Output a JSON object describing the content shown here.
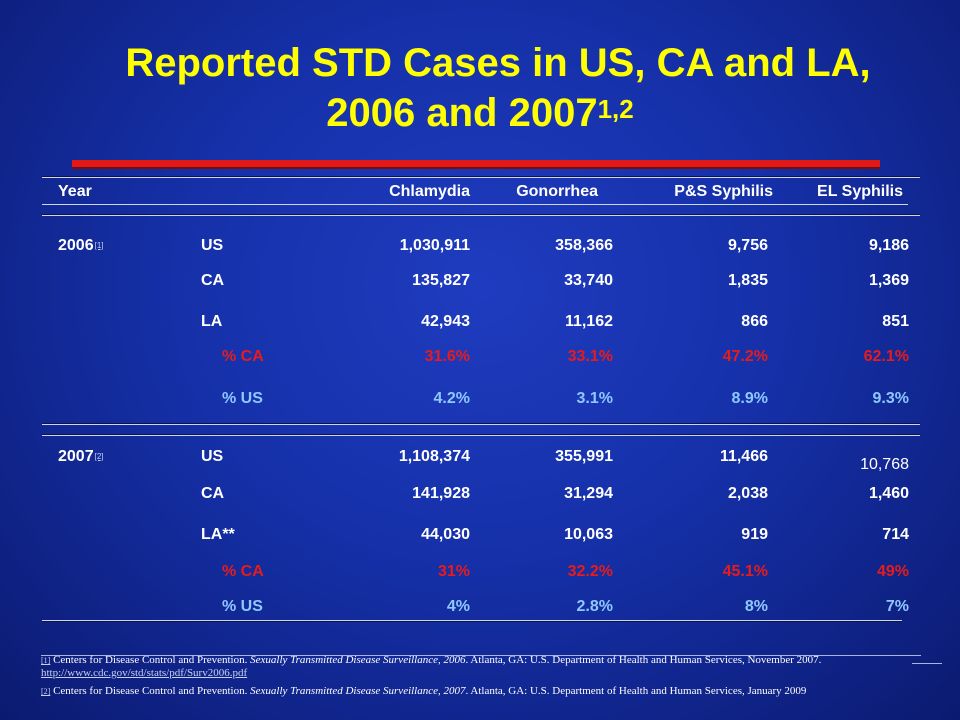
{
  "title": {
    "line1": "Reported STD Cases in US, CA and LA,",
    "line2": "2006 and 2007",
    "superscript": "1,2"
  },
  "chart_data": {
    "type": "table",
    "columns": [
      "Year",
      "",
      "Chlamydia",
      "Gonorrhea",
      "P&S Syphilis",
      "EL Syphilis"
    ],
    "groups": [
      {
        "year": "2006",
        "ref": "[1]",
        "rows": [
          {
            "label": "US",
            "values": [
              "1,030,911",
              "358,366",
              "9,756",
              "9,186"
            ]
          },
          {
            "label": "CA",
            "values": [
              "135,827",
              "33,740",
              "1,835",
              "1,369"
            ]
          },
          {
            "label": "LA",
            "values": [
              "42,943",
              "11,162",
              "866",
              "851"
            ]
          },
          {
            "label": "% CA",
            "values": [
              "31.6%",
              "33.1%",
              "47.2%",
              "62.1%"
            ]
          },
          {
            "label": "% US",
            "values": [
              "4.2%",
              "3.1%",
              "8.9%",
              "9.3%"
            ]
          }
        ]
      },
      {
        "year": "2007",
        "ref": "[2]",
        "rows": [
          {
            "label": "US",
            "values": [
              "1,108,374",
              "355,991",
              "11,466",
              "10,768"
            ]
          },
          {
            "label": "CA",
            "values": [
              "141,928",
              "31,294",
              "2,038",
              "1,460"
            ]
          },
          {
            "label": "LA**",
            "values": [
              "44,030",
              "10,063",
              "919",
              "714"
            ]
          },
          {
            "label": "% CA",
            "values": [
              "31%",
              "32.2%",
              "45.1%",
              "49%"
            ]
          },
          {
            "label": "% US",
            "values": [
              "4%",
              "2.8%",
              "8%",
              "7%"
            ]
          }
        ]
      }
    ]
  },
  "colors": {
    "title": "#ffff00",
    "background": "#1530a8",
    "accent_bar": "#e01818",
    "percent_ca": "#e81b1b",
    "percent_us": "#8fc8ff",
    "text": "#ffffff"
  },
  "footnotes": [
    {
      "ref": "[1]",
      "pre": " Centers for Disease Control and Prevention. ",
      "italic": "Sexually Transmitted Disease Surveillance, 2006",
      "post": ". Atlanta, GA:  U.S.  Department of Health and Human Services, November 2007. ",
      "link": "http://www.cdc.gov/std/stats/pdf/Surv2006.pdf"
    },
    {
      "ref": "[2]",
      "pre": " Centers for Disease Control and Prevention. ",
      "italic": "Sexually Transmitted Disease Surveillance, 2007",
      "post": ". Atlanta, GA:  U.S.  Department of Health and Human Services, January 2009",
      "link": ""
    }
  ]
}
